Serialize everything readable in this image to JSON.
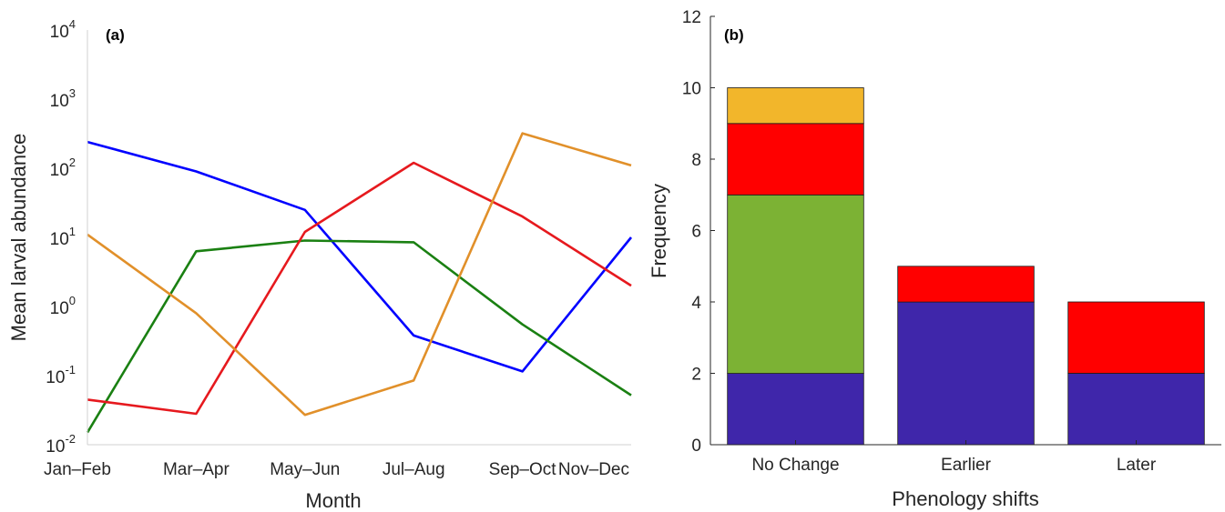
{
  "chart_data": [
    {
      "type": "line",
      "panel_label": "(a)",
      "xlabel": "Month",
      "ylabel": "Mean larval abundance",
      "yscale": "log",
      "ylim": [
        0.01,
        10000
      ],
      "y_ticks": [
        {
          "base": "10",
          "exp": "-2"
        },
        {
          "base": "10",
          "exp": "-1"
        },
        {
          "base": "10",
          "exp": "0"
        },
        {
          "base": "10",
          "exp": "1"
        },
        {
          "base": "10",
          "exp": "2"
        },
        {
          "base": "10",
          "exp": "3"
        },
        {
          "base": "10",
          "exp": "4"
        }
      ],
      "categories": [
        "Jan–Feb",
        "Mar–Apr",
        "May–Jun",
        "Jul–Aug",
        "Sep–Oct",
        "Nov–Dec"
      ],
      "series": [
        {
          "color": "#0000ff",
          "values": [
            240,
            90,
            25,
            0.38,
            0.115,
            10
          ]
        },
        {
          "color": "#1a8012",
          "values": [
            0.015,
            6.3,
            9,
            8.5,
            0.55,
            0.052
          ]
        },
        {
          "color": "#e6191e",
          "values": [
            0.045,
            0.028,
            12,
            120,
            20,
            2
          ]
        },
        {
          "color": "#e1902a",
          "values": [
            11,
            0.8,
            0.027,
            0.085,
            320,
            110
          ]
        }
      ]
    },
    {
      "type": "bar",
      "stacked": true,
      "panel_label": "(b)",
      "xlabel": "Phenology shifts",
      "ylabel": "Frequency",
      "ylim": [
        0,
        12
      ],
      "y_ticks": [
        "0",
        "2",
        "4",
        "6",
        "8",
        "10",
        "12"
      ],
      "categories": [
        "No Change",
        "Earlier",
        "Later"
      ],
      "series": [
        {
          "color": "#3f26aa",
          "values": [
            2,
            4,
            2
          ]
        },
        {
          "color": "#7cb234",
          "values": [
            5,
            0,
            0
          ]
        },
        {
          "color": "#ff0000",
          "values": [
            2,
            1,
            2
          ]
        },
        {
          "color": "#f2b62b",
          "values": [
            1,
            0,
            0
          ]
        }
      ]
    }
  ]
}
